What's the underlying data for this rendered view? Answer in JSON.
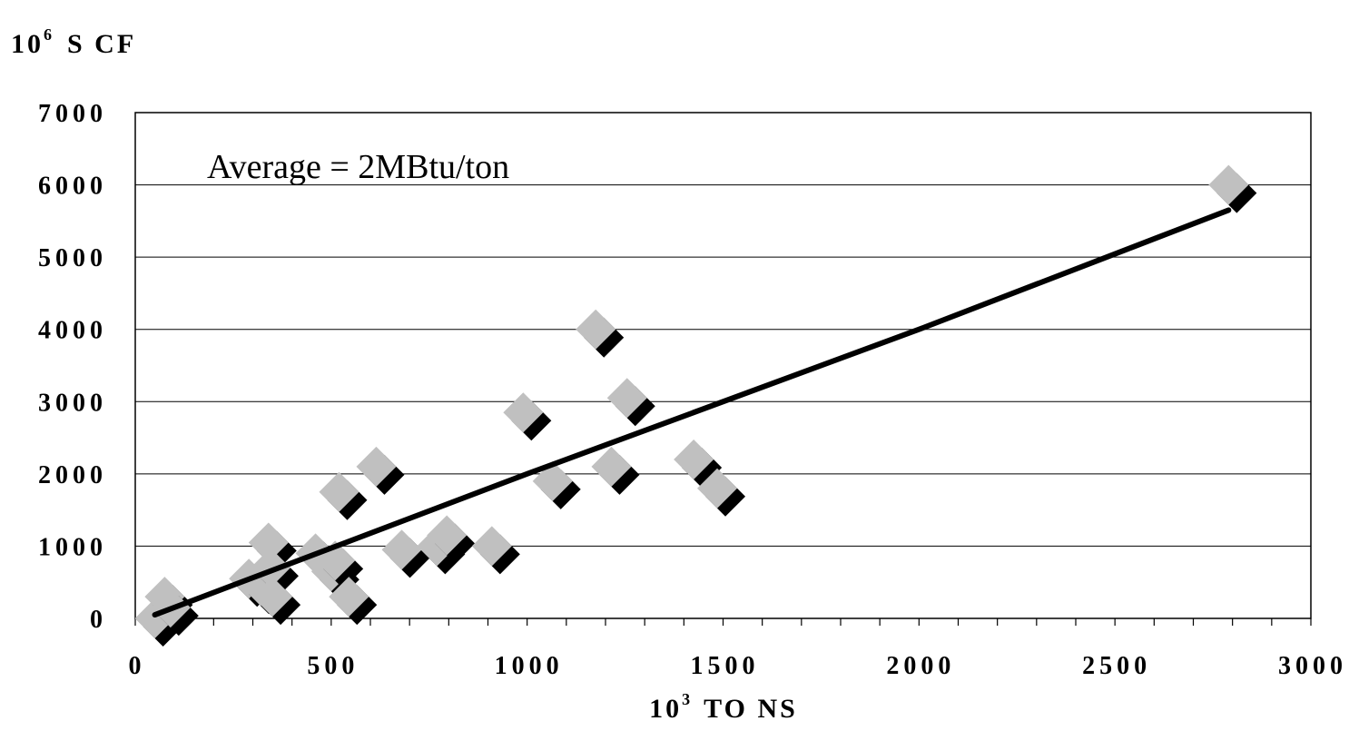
{
  "chart_data": {
    "type": "scatter",
    "ylabel_base": "10",
    "ylabel_exp": "6",
    "ylabel_unit": "S CF",
    "xlabel_base": "10",
    "xlabel_exp": "3",
    "xlabel_unit": "TO NS",
    "annotation": "Average = 2MBtu/ton",
    "xlim": [
      0,
      3000
    ],
    "ylim": [
      0,
      7000
    ],
    "x_ticks": [
      "0",
      "500",
      "1000",
      "1500",
      "2000",
      "2500",
      "3000"
    ],
    "y_ticks": [
      "0",
      "1000",
      "2000",
      "3000",
      "4000",
      "5000",
      "6000",
      "7000"
    ],
    "x_tick_values": [
      0,
      500,
      1000,
      1500,
      2000,
      2500,
      3000
    ],
    "y_tick_values": [
      0,
      1000,
      2000,
      3000,
      4000,
      5000,
      6000,
      7000
    ],
    "grid": "horizontal",
    "points": [
      {
        "x": 50,
        "y": 0
      },
      {
        "x": 75,
        "y": 300
      },
      {
        "x": 90,
        "y": 150
      },
      {
        "x": 290,
        "y": 550
      },
      {
        "x": 320,
        "y": 450
      },
      {
        "x": 340,
        "y": 1050
      },
      {
        "x": 345,
        "y": 700
      },
      {
        "x": 350,
        "y": 300
      },
      {
        "x": 460,
        "y": 900
      },
      {
        "x": 500,
        "y": 650
      },
      {
        "x": 510,
        "y": 800
      },
      {
        "x": 520,
        "y": 1750
      },
      {
        "x": 545,
        "y": 300
      },
      {
        "x": 615,
        "y": 2100
      },
      {
        "x": 680,
        "y": 950
      },
      {
        "x": 770,
        "y": 1000
      },
      {
        "x": 795,
        "y": 1150
      },
      {
        "x": 910,
        "y": 1000
      },
      {
        "x": 990,
        "y": 2850
      },
      {
        "x": 1065,
        "y": 1900
      },
      {
        "x": 1175,
        "y": 4000
      },
      {
        "x": 1215,
        "y": 2100
      },
      {
        "x": 1255,
        "y": 3050
      },
      {
        "x": 1425,
        "y": 2200
      },
      {
        "x": 1485,
        "y": 1800
      },
      {
        "x": 2790,
        "y": 6000
      }
    ],
    "trend_line": {
      "x": [
        50,
        1000,
        2000,
        2790
      ],
      "y": [
        50,
        2000,
        4000,
        5650
      ]
    }
  }
}
